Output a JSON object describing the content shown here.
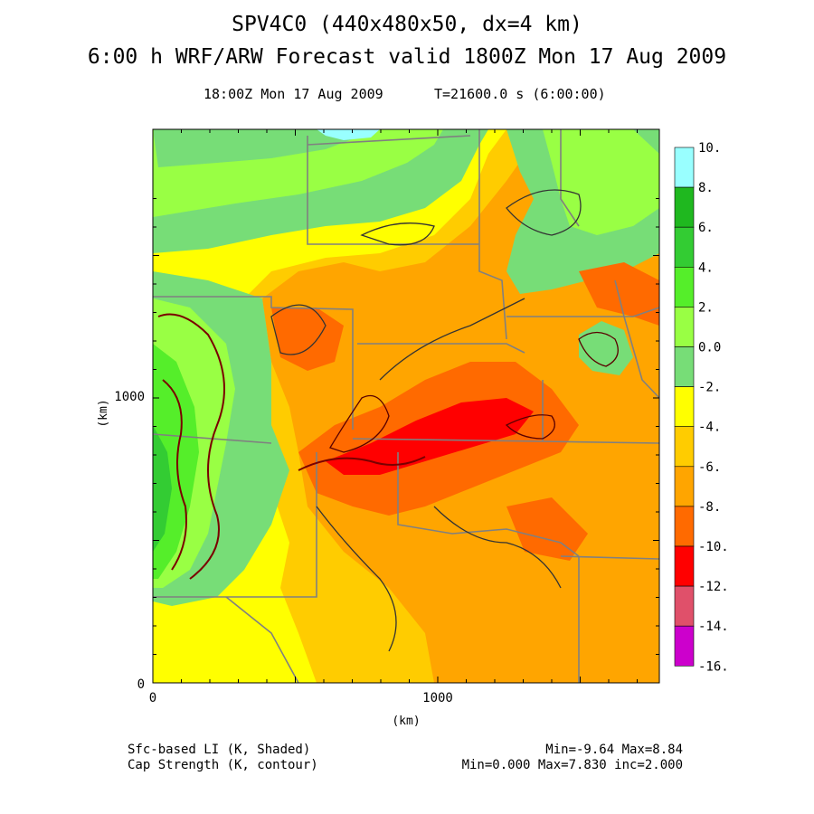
{
  "header": {
    "run_name": "SPV4C0 (440x480x50, dx=4 km)",
    "forecast_line": "6:00 h WRF/ARW Forecast valid 1800Z Mon 17 Aug 2009",
    "valid_time": "18:00Z Mon 17 Aug 2009",
    "model_time": "T=21600.0 s (6:00:00)"
  },
  "axes": {
    "x_label": "(km)",
    "y_label": "(km)",
    "x_ticks": [
      "0",
      "1000"
    ],
    "y_ticks": [
      "0",
      "1000"
    ]
  },
  "colorbar": {
    "levels": [
      "10.",
      "8.",
      "6.",
      "4.",
      "2.",
      "0.0",
      "-2.",
      "-4.",
      "-6.",
      "-8.",
      "-10.",
      "-12.",
      "-14.",
      "-16."
    ],
    "colors": [
      "#99ffff",
      "#1fb81f",
      "#33cc33",
      "#55ee2a",
      "#99ff44",
      "#77dd77",
      "#ffff00",
      "#ffcc00",
      "#ffa500",
      "#ff6a00",
      "#ff0000",
      "#e0506a",
      "#cc00cc",
      "#ff00ff"
    ]
  },
  "footer": {
    "field1": "Sfc-based LI (K, Shaded)",
    "field2": "Cap Strength (K, contour)",
    "stats1": "Min=-9.64 Max=8.84",
    "stats2": "Min=0.000 Max=7.830 inc=2.000"
  }
}
